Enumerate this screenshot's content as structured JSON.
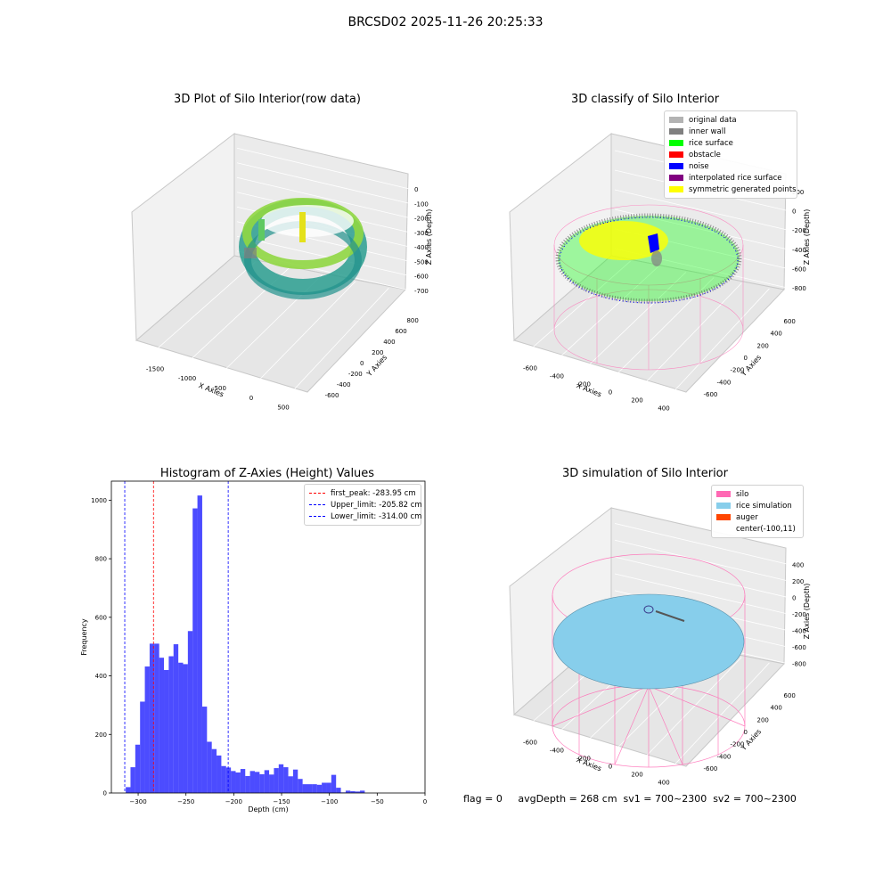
{
  "suptitle": "BRCSD02 2025-11-26 20:25:33",
  "panels": {
    "p1": {
      "title": "3D Plot of Silo Interior(row data)",
      "xlabel": "X Axies",
      "ylabel": "Y Axies",
      "zlabel": "Z Axies (Depth)",
      "xticks": [
        "-1500",
        "-1000",
        "-500",
        "0",
        "500"
      ],
      "yticks": [
        "-600",
        "-400",
        "-200",
        "0",
        "200",
        "400",
        "600",
        "800"
      ],
      "zticks": [
        "0",
        "-100",
        "-200",
        "-300",
        "-400",
        "-500",
        "-600",
        "-700"
      ]
    },
    "p2": {
      "title": "3D classify of Silo Interior",
      "xlabel": "X Axies",
      "ylabel": "Y Axies",
      "zlabel": "Z Axies (Depth)",
      "xticks": [
        "-600",
        "-400",
        "-200",
        "0",
        "200",
        "400"
      ],
      "yticks": [
        "-600",
        "-400",
        "-200",
        "0",
        "200",
        "400",
        "600"
      ],
      "zticks": [
        "200",
        "0",
        "-200",
        "-400",
        "-600",
        "-800"
      ],
      "legend": [
        {
          "label": "original data",
          "color": "#b3b3b3"
        },
        {
          "label": "inner wall",
          "color": "#808080"
        },
        {
          "label": "rice surface",
          "color": "#00ff00"
        },
        {
          "label": "obstacle",
          "color": "#ff0000"
        },
        {
          "label": "noise",
          "color": "#0000ff"
        },
        {
          "label": "interpolated rice surface",
          "color": "#800080"
        },
        {
          "label": "symmetric generated points",
          "color": "#ffff00"
        }
      ],
      "z_top_partial_tick": "400"
    },
    "p4": {
      "title": "3D simulation of Silo Interior",
      "xlabel": "X Axies",
      "ylabel": "Y Axies",
      "zlabel": "Z Axies (Depth)",
      "xticks": [
        "-600",
        "-400",
        "-200",
        "0",
        "200",
        "400"
      ],
      "yticks": [
        "-600",
        "-400",
        "-200",
        "0",
        "200",
        "400",
        "600"
      ],
      "zticks": [
        "400",
        "200",
        "0",
        "-200",
        "-400",
        "-600",
        "-800"
      ],
      "legend": [
        {
          "label": "silo",
          "color": "#ff69b4"
        },
        {
          "label": "rice simulation",
          "color": "#87ceeb"
        },
        {
          "label": "auger",
          "color": "#ff4500"
        },
        {
          "label": "center(-100,11)",
          "color": ""
        }
      ]
    }
  },
  "chart_data": [
    {
      "type": "bar",
      "title": "Histogram of Z-Axies (Height) Values",
      "xlabel": "Depth (cm)",
      "ylabel": "Frequency",
      "xlim": [
        -328,
        0
      ],
      "ylim": [
        0,
        1065
      ],
      "xticks": [
        -300,
        -250,
        -200,
        -150,
        -100,
        -50,
        0
      ],
      "yticks": [
        0,
        200,
        400,
        600,
        800,
        1000
      ],
      "bin_width": 5,
      "bin_edges_start": -313,
      "bar_color": "#0000ff",
      "values": [
        20,
        88,
        165,
        312,
        432,
        510,
        510,
        462,
        420,
        467,
        508,
        445,
        440,
        553,
        972,
        1016,
        295,
        175,
        150,
        128,
        92,
        87,
        75,
        70,
        82,
        58,
        75,
        72,
        64,
        78,
        63,
        85,
        98,
        88,
        57,
        80,
        48,
        30,
        30,
        30,
        28,
        35,
        35,
        62,
        18,
        2,
        8,
        6,
        5,
        8
      ],
      "vlines": [
        {
          "label": "first_peak: -283.95 cm",
          "x": -283.95,
          "color": "#ff0000"
        },
        {
          "label": "Upper_limit: -205.82 cm",
          "x": -205.82,
          "color": "#0000ff"
        },
        {
          "label": "Lower_limit: -314.00 cm",
          "x": -314.0,
          "color": "#0000ff"
        }
      ]
    }
  ],
  "status": {
    "text": "flag = 0     avgDepth = 268 cm  sv1 = 700~2300  sv2 = 700~2300"
  }
}
